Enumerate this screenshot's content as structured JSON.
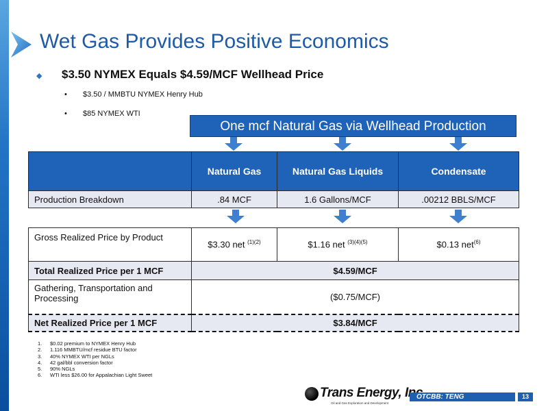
{
  "title": "Wet Gas Provides Positive Economics",
  "main_bullet": "$3.50 NYMEX Equals $4.59/MCF Wellhead Price",
  "sub_bullets": [
    "$3.50 / MMBTU NYMEX Henry Hub",
    "$85 NYMEX WTI"
  ],
  "banner": "One mcf Natural Gas via Wellhead Production",
  "table1": {
    "headers": [
      "Natural Gas",
      "Natural Gas Liquids",
      "Condensate"
    ],
    "row_label": "Production Breakdown",
    "row_values": [
      ".84 MCF",
      "1.6 Gallons/MCF",
      ".00212 BBLS/MCF"
    ]
  },
  "table2": {
    "gross_label": "Gross Realized Price by Product",
    "gross_values": [
      {
        "value": "$3.30 net ",
        "note": "(1)(2)"
      },
      {
        "value": "$1.16 net ",
        "note": "(3)(4)(5)"
      },
      {
        "value": "$0.13 net",
        "note": "(6)"
      }
    ],
    "total_label": "Total Realized Price per 1 MCF",
    "total_value": "$4.59/MCF",
    "gathering_label": "Gathering, Transportation and Processing",
    "gathering_value": "($0.75/MCF)",
    "net_label": "Net Realized Price per 1 MCF",
    "net_value": "$3.84/MCF"
  },
  "footnotes": [
    {
      "num": "1.",
      "text": "$0.02 premium to NYMEX Henry Hub"
    },
    {
      "num": "2.",
      "text": "1.116 MMBTU/mcf residue BTU factor"
    },
    {
      "num": "3.",
      "text": "40% NYMEX WTI per NGLs"
    },
    {
      "num": "4.",
      "text": "42 gal/bbl conversion factor"
    },
    {
      "num": "5.",
      "text": "90% NGLs"
    },
    {
      "num": "6.",
      "text": "WTI less $26.00 for Appalachian Light Sweet"
    }
  ],
  "logo": {
    "name": "Trans Energy, Inc.",
    "tagline": "Oil and Gas Exploration and Development"
  },
  "ticker": "OTCBB: TENG",
  "page_number": "13",
  "colors": {
    "accent": "#1e63b8",
    "title": "#1d5aa8",
    "row_shade": "#e6e8f2"
  }
}
